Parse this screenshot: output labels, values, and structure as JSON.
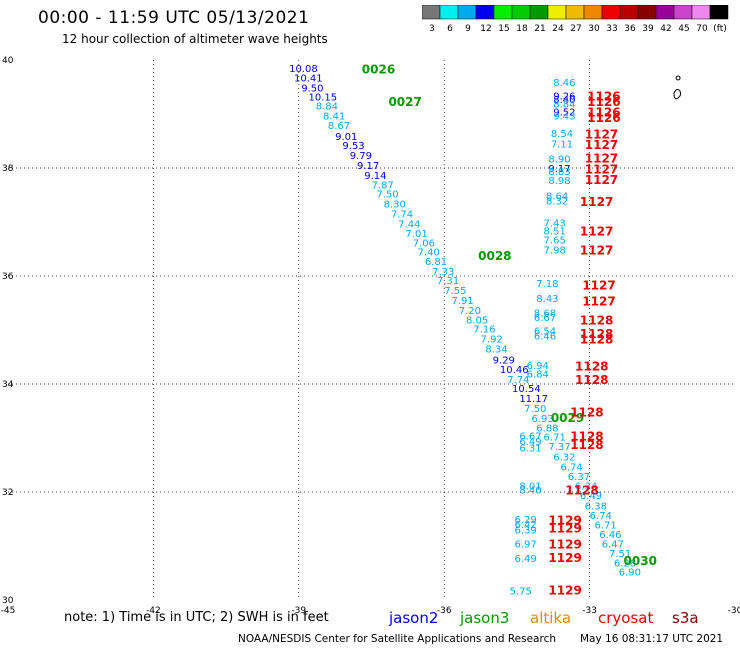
{
  "title": "00:00 - 11:59 UTC 05/13/2021",
  "subtitle": "12 hour collection of altimeter wave heights",
  "legend": {
    "colors": [
      "#777777",
      "#00eeee",
      "#00aaee",
      "#0000ee",
      "#00ee00",
      "#00cc00",
      "#009900",
      "#eeee00",
      "#eebb00",
      "#ee8800",
      "#ee0000",
      "#bb0000",
      "#880000",
      "#990099",
      "#cc44cc",
      "#ee88ee",
      "#000000"
    ],
    "labels": [
      "3",
      "6",
      "9",
      "12",
      "15",
      "18",
      "21",
      "24",
      "27",
      "30",
      "33",
      "36",
      "39",
      "42",
      "45",
      "70",
      "(ft)"
    ]
  },
  "notes": {
    "text": "note: 1) Time is in UTC; 2) SWH is in feet",
    "missions": [
      {
        "name": "jason2",
        "color": "#0000ee"
      },
      {
        "name": "jason3",
        "color": "#009900"
      },
      {
        "name": "altika",
        "color": "#ee8800"
      },
      {
        "name": "cryosat",
        "color": "#ee0000"
      },
      {
        "name": "s3a",
        "color": "#880000"
      }
    ]
  },
  "footer": {
    "left": "NOAA/NESDIS Center for Satellite Applications and Research",
    "right": "May 16 08:31:17 UTC 2021"
  },
  "chart_data": {
    "type": "scatter",
    "xlim": [
      -45,
      -30
    ],
    "ylim": [
      30,
      40
    ],
    "xticks": [
      "-45",
      "-42",
      "-39",
      "-36",
      "-33",
      "-30"
    ],
    "yticks": [
      "30",
      "32",
      "34",
      "36",
      "38",
      "40"
    ],
    "grid": true,
    "track_labels": [
      {
        "text": "0026",
        "x": -37.7,
        "y": 39.75,
        "color": "#009900"
      },
      {
        "text": "0027",
        "x": -37.15,
        "y": 39.15,
        "color": "#009900"
      },
      {
        "text": "0028",
        "x": -35.3,
        "y": 36.3,
        "color": "#009900"
      },
      {
        "text": "0029",
        "x": -33.8,
        "y": 33.3,
        "color": "#009900"
      },
      {
        "text": "0030",
        "x": -32.3,
        "y": 30.65,
        "color": "#009900"
      },
      {
        "text": "1126",
        "x": -33.05,
        "y": 39.25,
        "color": "#ee0000"
      },
      {
        "text": "1126",
        "x": -33.05,
        "y": 39.15,
        "color": "#ee0000"
      },
      {
        "text": "1126",
        "x": -33.05,
        "y": 38.95,
        "color": "#ee0000"
      },
      {
        "text": "1126",
        "x": -33.05,
        "y": 38.85,
        "color": "#ee0000"
      },
      {
        "text": "1127",
        "x": -33.1,
        "y": 38.55,
        "color": "#ee0000"
      },
      {
        "text": "1127",
        "x": -33.1,
        "y": 38.35,
        "color": "#ee0000"
      },
      {
        "text": "1127",
        "x": -33.1,
        "y": 38.1,
        "color": "#ee0000"
      },
      {
        "text": "1127",
        "x": -33.1,
        "y": 37.9,
        "color": "#ee0000"
      },
      {
        "text": "1127",
        "x": -33.1,
        "y": 37.7,
        "color": "#ee0000"
      },
      {
        "text": "1127",
        "x": -33.2,
        "y": 37.3,
        "color": "#ee0000"
      },
      {
        "text": "1127",
        "x": -33.2,
        "y": 36.75,
        "color": "#ee0000"
      },
      {
        "text": "1127",
        "x": -33.2,
        "y": 36.4,
        "color": "#ee0000"
      },
      {
        "text": "1127",
        "x": -33.15,
        "y": 35.75,
        "color": "#ee0000"
      },
      {
        "text": "1127",
        "x": -33.15,
        "y": 35.45,
        "color": "#ee0000"
      },
      {
        "text": "1128",
        "x": -33.2,
        "y": 35.1,
        "color": "#ee0000"
      },
      {
        "text": "1128",
        "x": -33.2,
        "y": 34.85,
        "color": "#ee0000"
      },
      {
        "text": "1128",
        "x": -33.2,
        "y": 34.75,
        "color": "#ee0000"
      },
      {
        "text": "1128",
        "x": -33.3,
        "y": 34.25,
        "color": "#ee0000"
      },
      {
        "text": "1128",
        "x": -33.3,
        "y": 34.0,
        "color": "#ee0000"
      },
      {
        "text": "1128",
        "x": -33.4,
        "y": 33.4,
        "color": "#ee0000"
      },
      {
        "text": "1128",
        "x": -33.4,
        "y": 32.95,
        "color": "#ee0000"
      },
      {
        "text": "1128",
        "x": -33.4,
        "y": 32.8,
        "color": "#ee0000"
      },
      {
        "text": "1128",
        "x": -33.5,
        "y": 31.95,
        "color": "#ee0000"
      },
      {
        "text": "1129",
        "x": -33.85,
        "y": 31.4,
        "color": "#ee0000"
      },
      {
        "text": "1129",
        "x": -33.85,
        "y": 31.25,
        "color": "#ee0000"
      },
      {
        "text": "1129",
        "x": -33.85,
        "y": 30.95,
        "color": "#ee0000"
      },
      {
        "text": "1129",
        "x": -33.85,
        "y": 30.7,
        "color": "#ee0000"
      },
      {
        "text": "1129",
        "x": -33.85,
        "y": 30.1,
        "color": "#ee0000"
      }
    ],
    "wave_heights": [
      {
        "v": "10.08",
        "x": -39.2,
        "y": 39.78,
        "c": "#0000ee"
      },
      {
        "v": "10.41",
        "x": -39.1,
        "y": 39.6,
        "c": "#0000ee"
      },
      {
        "v": "9.50",
        "x": -38.95,
        "y": 39.42,
        "c": "#0000ee"
      },
      {
        "v": "10.15",
        "x": -38.8,
        "y": 39.25,
        "c": "#0000ee"
      },
      {
        "v": "8.84",
        "x": -38.65,
        "y": 39.08,
        "c": "#00aaee"
      },
      {
        "v": "8.41",
        "x": -38.5,
        "y": 38.9,
        "c": "#00aaee"
      },
      {
        "v": "8.67",
        "x": -38.4,
        "y": 38.72,
        "c": "#00aaee"
      },
      {
        "v": "9.01",
        "x": -38.25,
        "y": 38.52,
        "c": "#0000ee"
      },
      {
        "v": "9.53",
        "x": -38.1,
        "y": 38.35,
        "c": "#0000ee"
      },
      {
        "v": "9.79",
        "x": -37.95,
        "y": 38.17,
        "c": "#0000ee"
      },
      {
        "v": "9.17",
        "x": -37.8,
        "y": 37.98,
        "c": "#0000ee"
      },
      {
        "v": "9.14",
        "x": -37.65,
        "y": 37.8,
        "c": "#0000ee"
      },
      {
        "v": "7.87",
        "x": -37.5,
        "y": 37.62,
        "c": "#00aaee"
      },
      {
        "v": "7.50",
        "x": -37.4,
        "y": 37.45,
        "c": "#00aaee"
      },
      {
        "v": "8.30",
        "x": -37.25,
        "y": 37.27,
        "c": "#00aaee"
      },
      {
        "v": "7.74",
        "x": -37.1,
        "y": 37.08,
        "c": "#00aaee"
      },
      {
        "v": "7.44",
        "x": -36.95,
        "y": 36.9,
        "c": "#00aaee"
      },
      {
        "v": "7.01",
        "x": -36.8,
        "y": 36.72,
        "c": "#00aaee"
      },
      {
        "v": "7.06",
        "x": -36.65,
        "y": 36.55,
        "c": "#00aaee"
      },
      {
        "v": "7.40",
        "x": -36.55,
        "y": 36.38,
        "c": "#00aaee"
      },
      {
        "v": "6.81",
        "x": -36.4,
        "y": 36.2,
        "c": "#00aaee"
      },
      {
        "v": "7.33",
        "x": -36.25,
        "y": 36.02,
        "c": "#00aaee"
      },
      {
        "v": "7.31",
        "x": -36.15,
        "y": 35.85,
        "c": "#00aaee"
      },
      {
        "v": "7.55",
        "x": -36.0,
        "y": 35.67,
        "c": "#00aaee"
      },
      {
        "v": "7.91",
        "x": -35.85,
        "y": 35.48,
        "c": "#00aaee"
      },
      {
        "v": "7.20",
        "x": -35.7,
        "y": 35.3,
        "c": "#00aaee"
      },
      {
        "v": "8.05",
        "x": -35.55,
        "y": 35.12,
        "c": "#00aaee"
      },
      {
        "v": "7.16",
        "x": -35.4,
        "y": 34.95,
        "c": "#00aaee"
      },
      {
        "v": "7.92",
        "x": -35.25,
        "y": 34.77,
        "c": "#00aaee"
      },
      {
        "v": "8.34",
        "x": -35.15,
        "y": 34.58,
        "c": "#00aaee"
      },
      {
        "v": "9.29",
        "x": -35.0,
        "y": 34.38,
        "c": "#0000ee"
      },
      {
        "v": "10.46",
        "x": -34.85,
        "y": 34.2,
        "c": "#0000ee"
      },
      {
        "v": "7.74",
        "x": -34.7,
        "y": 34.02,
        "c": "#00aaee"
      },
      {
        "v": "10.54",
        "x": -34.6,
        "y": 33.85,
        "c": "#0000ee"
      },
      {
        "v": "11.17",
        "x": -34.45,
        "y": 33.67,
        "c": "#0000ee"
      },
      {
        "v": "7.50",
        "x": -34.35,
        "y": 33.48,
        "c": "#00aaee"
      },
      {
        "v": "6.93",
        "x": -34.2,
        "y": 33.3,
        "c": "#00aaee"
      },
      {
        "v": "6.88",
        "x": -34.1,
        "y": 33.12,
        "c": "#00aaee"
      },
      {
        "v": "6.71",
        "x": -33.95,
        "y": 32.95,
        "c": "#00aaee"
      },
      {
        "v": "7.37",
        "x": -33.85,
        "y": 32.78,
        "c": "#00aaee"
      },
      {
        "v": "6.32",
        "x": -33.75,
        "y": 32.58,
        "c": "#00aaee"
      },
      {
        "v": "6.74",
        "x": -33.6,
        "y": 32.4,
        "c": "#00aaee"
      },
      {
        "v": "6.37",
        "x": -33.45,
        "y": 32.22,
        "c": "#00aaee"
      },
      {
        "v": "6.34",
        "x": -33.3,
        "y": 32.05,
        "c": "#00aaee"
      },
      {
        "v": "6.49",
        "x": -33.2,
        "y": 31.87,
        "c": "#00aaee"
      },
      {
        "v": "6.38",
        "x": -33.1,
        "y": 31.68,
        "c": "#00aaee"
      },
      {
        "v": "6.74",
        "x": -33.0,
        "y": 31.5,
        "c": "#00aaee"
      },
      {
        "v": "6.71",
        "x": -32.9,
        "y": 31.32,
        "c": "#00aaee"
      },
      {
        "v": "6.46",
        "x": -32.8,
        "y": 31.15,
        "c": "#00aaee"
      },
      {
        "v": "6.47",
        "x": -32.75,
        "y": 30.97,
        "c": "#00aaee"
      },
      {
        "v": "7.51",
        "x": -32.6,
        "y": 30.8,
        "c": "#00aaee"
      },
      {
        "v": "6.28",
        "x": -32.5,
        "y": 30.62,
        "c": "#00aaee"
      },
      {
        "v": "6.90",
        "x": -32.4,
        "y": 30.45,
        "c": "#00aaee"
      },
      {
        "v": "8.46",
        "x": -33.75,
        "y": 39.52,
        "c": "#00aaee"
      },
      {
        "v": "9.26",
        "x": -33.75,
        "y": 39.27,
        "c": "#0000ee"
      },
      {
        "v": "8.40",
        "x": -33.75,
        "y": 39.2,
        "c": "#0000ee"
      },
      {
        "v": "8.84",
        "x": -33.75,
        "y": 39.12,
        "c": "#00aaee"
      },
      {
        "v": "9.52",
        "x": -33.75,
        "y": 38.97,
        "c": "#0000ee"
      },
      {
        "v": "9.43",
        "x": -33.75,
        "y": 38.9,
        "c": "#00aaee"
      },
      {
        "v": "8.54",
        "x": -33.8,
        "y": 38.57,
        "c": "#00aaee"
      },
      {
        "v": "7.11",
        "x": -33.8,
        "y": 38.38,
        "c": "#00aaee"
      },
      {
        "v": "8.90",
        "x": -33.85,
        "y": 38.1,
        "c": "#00aaee"
      },
      {
        "v": "9.17",
        "x": -33.85,
        "y": 37.93,
        "c": "#0000ee"
      },
      {
        "v": "8.83",
        "x": -33.85,
        "y": 37.87,
        "c": "#00aaee"
      },
      {
        "v": "8.98",
        "x": -33.85,
        "y": 37.7,
        "c": "#00aaee"
      },
      {
        "v": "8.64",
        "x": -33.9,
        "y": 37.42,
        "c": "#00aaee"
      },
      {
        "v": "8.32",
        "x": -33.9,
        "y": 37.32,
        "c": "#00aaee"
      },
      {
        "v": "7.43",
        "x": -33.95,
        "y": 36.92,
        "c": "#00aaee"
      },
      {
        "v": "8.51",
        "x": -33.95,
        "y": 36.77,
        "c": "#00aaee"
      },
      {
        "v": "7.65",
        "x": -33.95,
        "y": 36.6,
        "c": "#00aaee"
      },
      {
        "v": "7.98",
        "x": -33.95,
        "y": 36.42,
        "c": "#00aaee"
      },
      {
        "v": "7.18",
        "x": -34.1,
        "y": 35.8,
        "c": "#00aaee"
      },
      {
        "v": "8.43",
        "x": -34.1,
        "y": 35.52,
        "c": "#00aaee"
      },
      {
        "v": "8.68",
        "x": -34.15,
        "y": 35.25,
        "c": "#00aaee"
      },
      {
        "v": "6.67",
        "x": -34.15,
        "y": 35.17,
        "c": "#00aaee"
      },
      {
        "v": "6.54",
        "x": -34.15,
        "y": 34.92,
        "c": "#00aaee"
      },
      {
        "v": "6.46",
        "x": -34.15,
        "y": 34.82,
        "c": "#00aaee"
      },
      {
        "v": "6.94",
        "x": -34.3,
        "y": 34.28,
        "c": "#00aaee"
      },
      {
        "v": "6.84",
        "x": -34.3,
        "y": 34.12,
        "c": "#00aaee"
      },
      {
        "v": "6.67",
        "x": -34.45,
        "y": 32.97,
        "c": "#00aaee"
      },
      {
        "v": "6.49",
        "x": -34.45,
        "y": 32.87,
        "c": "#00aaee"
      },
      {
        "v": "6.31",
        "x": -34.45,
        "y": 32.75,
        "c": "#00aaee"
      },
      {
        "v": "8.01",
        "x": -34.45,
        "y": 32.05,
        "c": "#00aaee"
      },
      {
        "v": "8.40",
        "x": -34.45,
        "y": 31.97,
        "c": "#00aaee"
      },
      {
        "v": "6.29",
        "x": -34.55,
        "y": 31.43,
        "c": "#00aaee"
      },
      {
        "v": "6.42",
        "x": -34.55,
        "y": 31.33,
        "c": "#00aaee"
      },
      {
        "v": "6.39",
        "x": -34.55,
        "y": 31.23,
        "c": "#00aaee"
      },
      {
        "v": "6.97",
        "x": -34.55,
        "y": 30.97,
        "c": "#00aaee"
      },
      {
        "v": "6.49",
        "x": -34.55,
        "y": 30.7,
        "c": "#00aaee"
      },
      {
        "v": "5.75",
        "x": -34.65,
        "y": 30.1,
        "c": "#00aaee"
      }
    ]
  }
}
